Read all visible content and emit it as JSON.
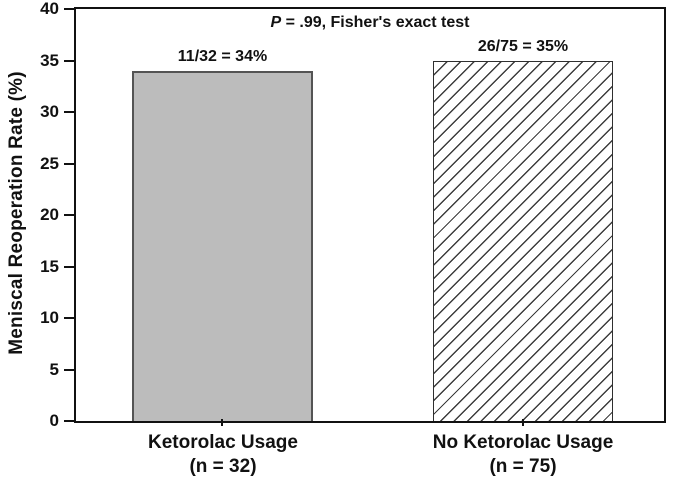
{
  "chart_data": {
    "type": "bar",
    "title": "",
    "annotation": {
      "p_symbol": "P",
      "rest": " = .99, Fisher's exact test"
    },
    "ylabel": "Meniscal Reoperation Rate (%)",
    "xlabel": "",
    "ylim": [
      0,
      40
    ],
    "yticks": [
      0,
      5,
      10,
      15,
      20,
      25,
      30,
      35,
      40
    ],
    "grid": false,
    "legend": false,
    "categories": [
      "Ketorolac Usage (n = 32)",
      "No Ketorolac Usage (n = 75)"
    ],
    "series": [
      {
        "category_line1": "Ketorolac Usage",
        "category_line2": "(n = 32)",
        "value": 34,
        "bar_label": "11/32 = 34%",
        "fill": "solid-gray",
        "fill_color": "#bcbcbc"
      },
      {
        "category_line1": "No Ketorolac Usage",
        "category_line2": "(n = 75)",
        "value": 35,
        "bar_label": "26/75 = 35%",
        "fill": "diagonal-hatch",
        "fill_color": "#ffffff"
      }
    ],
    "colors": {
      "axis": "#111111",
      "text": "#111111",
      "solid_bar_fill": "#bcbcbc",
      "solid_bar_border": "#545454",
      "hatch_line": "#3c3c3c",
      "background": "#ffffff"
    }
  }
}
